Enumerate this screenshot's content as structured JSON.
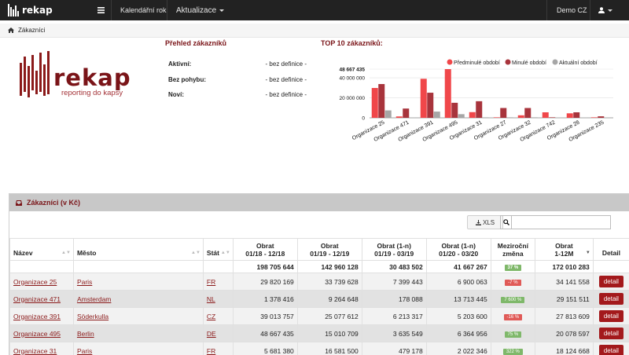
{
  "nav": {
    "brand": "rekap",
    "menu_icon": "menu-icon",
    "calendar_year": "Kalendářní rok",
    "updates": "Aktualizace",
    "company": "Demo CZ",
    "user_icon": "user-icon"
  },
  "breadcrumb": {
    "icon": "home-icon",
    "label": "Zákazníci"
  },
  "logo": {
    "name": "rekap",
    "tagline": "reporting do kapsy",
    "brand_color": "#8b1a1a"
  },
  "overview": {
    "title": "Přehled zákazníků",
    "rows": [
      {
        "label": "Aktivní:",
        "value": "- bez definice -"
      },
      {
        "label": "Bez pohybu:",
        "value": "- bez definice -"
      },
      {
        "label": "Noví:",
        "value": "- bez definice -"
      }
    ]
  },
  "chart_data": {
    "type": "bar",
    "title": "TOP 10 zákazníků:",
    "categories": [
      "Organizace 25",
      "Organizace 471",
      "Organizace 391",
      "Organizace 495",
      "Organizace 31",
      "Organizace 27",
      "Organizace 32",
      "Organizace 742",
      "Organizace 28",
      "Organizace 235"
    ],
    "series": [
      {
        "name": "Předminulé období",
        "color": "#f0474a",
        "values": [
          29820169,
          1378416,
          39013757,
          48667435,
          5681380,
          500000,
          2500000,
          5500000,
          4500000,
          500000
        ]
      },
      {
        "name": "Minulé období",
        "color": "#a8343c",
        "values": [
          33739628,
          9264648,
          25077612,
          15010709,
          16581500,
          9800000,
          9800000,
          500000,
          5500000,
          1500000
        ]
      },
      {
        "name": "Aktuální období",
        "color": "#a6a6a6",
        "values": [
          7399443,
          178088,
          6213317,
          3635549,
          479178,
          500000,
          500000,
          400000,
          300000,
          200000
        ]
      }
    ],
    "y_ticks": [
      "48 667 435",
      "40 000 000",
      "20 000 000",
      "0"
    ],
    "ylim": [
      0,
      48667435
    ],
    "legend_position": "top-right"
  },
  "table": {
    "title": "Zákazníci (v Kč)",
    "xls_label": "XLS",
    "search_placeholder": "",
    "headers": {
      "name": "Název",
      "city": "Město",
      "state": "Stát",
      "c1": [
        "Obrat",
        "01/18 - 12/18"
      ],
      "c2": [
        "Obrat",
        "01/19 - 12/19"
      ],
      "c3": [
        "Obrat (1-n)",
        "01/19 - 03/19"
      ],
      "c4": [
        "Obrat (1-n)",
        "01/20 - 03/20"
      ],
      "change": [
        "Meziroční",
        "změna"
      ],
      "c12": [
        "Obrat",
        "1-12M"
      ],
      "detail": "Detail"
    },
    "totals": {
      "c1": "198 705 644",
      "c2": "142 960 128",
      "c3": "30 483 502",
      "c4": "41 667 267",
      "change": "37 %",
      "c12": "172 010 283"
    },
    "rows": [
      {
        "name": "Organizace 25",
        "city": "Paris",
        "state": "FR",
        "c1": "29 820 169",
        "c2": "33 739 628",
        "c3": "7 399 443",
        "c4": "6 900 063",
        "change": "-7 %",
        "change_sign": "neg",
        "c12": "34 141 558",
        "detail": "detail"
      },
      {
        "name": "Organizace 471",
        "city": "Amsterdam",
        "state": "NL",
        "c1": "1 378 416",
        "c2": "9 264 648",
        "c3": "178 088",
        "c4": "13 713 445",
        "change": "7 600 %",
        "change_sign": "pos",
        "c12": "29 151 511",
        "detail": "detail"
      },
      {
        "name": "Organizace 391",
        "city": "Söderkulla",
        "state": "CZ",
        "c1": "39 013 757",
        "c2": "25 077 612",
        "c3": "6 213 317",
        "c4": "5 203 600",
        "change": "-16 %",
        "change_sign": "neg",
        "c12": "27 813 609",
        "detail": "detail"
      },
      {
        "name": "Organizace 495",
        "city": "Berlin",
        "state": "DE",
        "c1": "48 667 435",
        "c2": "15 010 709",
        "c3": "3 635 549",
        "c4": "6 364 956",
        "change": "75 %",
        "change_sign": "pos",
        "c12": "20 078 597",
        "detail": "detail"
      },
      {
        "name": "Organizace 31",
        "city": "Paris",
        "state": "FR",
        "c1": "5 681 380",
        "c2": "16 581 500",
        "c3": "479 178",
        "c4": "2 022 346",
        "change": "322 %",
        "change_sign": "pos",
        "c12": "18 124 668",
        "detail": "detail"
      }
    ]
  }
}
